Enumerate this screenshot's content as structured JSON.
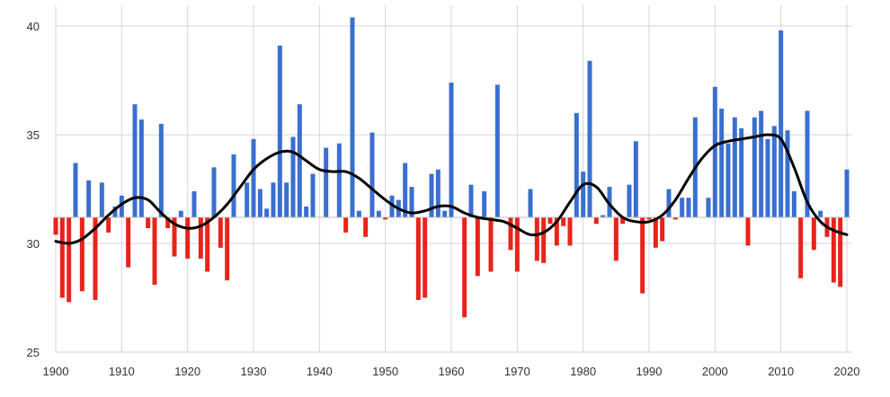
{
  "colors": {
    "above": "#3a6fcf",
    "below": "#e8231b",
    "trend": "#000000",
    "grid": "#d6d6d6"
  },
  "chart_data": {
    "type": "bar",
    "title": "",
    "xlabel": "",
    "ylabel": "",
    "baseline": 31.2,
    "xlim": [
      1900,
      2020
    ],
    "ylim": [
      25,
      41
    ],
    "xticks": [
      "1900",
      "1910",
      "1920",
      "1930",
      "1940",
      "1950",
      "1960",
      "1970",
      "1980",
      "1990",
      "2000",
      "2010",
      "2020"
    ],
    "yticks": [
      "25",
      "30",
      "35",
      "40"
    ],
    "years": [
      1900,
      1901,
      1902,
      1903,
      1904,
      1905,
      1906,
      1907,
      1908,
      1909,
      1910,
      1911,
      1912,
      1913,
      1914,
      1915,
      1916,
      1917,
      1918,
      1919,
      1920,
      1921,
      1922,
      1923,
      1924,
      1925,
      1926,
      1927,
      1928,
      1929,
      1930,
      1931,
      1932,
      1933,
      1934,
      1935,
      1936,
      1937,
      1938,
      1939,
      1940,
      1941,
      1942,
      1943,
      1944,
      1945,
      1946,
      1947,
      1948,
      1949,
      1950,
      1951,
      1952,
      1953,
      1954,
      1955,
      1956,
      1957,
      1958,
      1959,
      1960,
      1961,
      1962,
      1963,
      1964,
      1965,
      1966,
      1967,
      1968,
      1969,
      1970,
      1971,
      1972,
      1973,
      1974,
      1975,
      1976,
      1977,
      1978,
      1979,
      1980,
      1981,
      1982,
      1983,
      1984,
      1985,
      1986,
      1987,
      1988,
      1989,
      1990,
      1991,
      1992,
      1993,
      1994,
      1995,
      1996,
      1997,
      1998,
      1999,
      2000,
      2001,
      2002,
      2003,
      2004,
      2005,
      2006,
      2007,
      2008,
      2009,
      2010,
      2011,
      2012,
      2013,
      2014,
      2015,
      2016,
      2017,
      2018,
      2019,
      2020
    ],
    "values": [
      30.4,
      27.5,
      27.3,
      33.7,
      27.8,
      32.9,
      27.4,
      32.8,
      30.5,
      31.7,
      32.2,
      28.9,
      36.4,
      35.7,
      30.7,
      28.1,
      35.5,
      30.7,
      29.4,
      31.5,
      29.3,
      32.4,
      29.3,
      28.7,
      33.5,
      29.8,
      28.3,
      34.1,
      31.2,
      32.8,
      34.8,
      32.5,
      31.6,
      32.8,
      39.1,
      32.8,
      34.9,
      36.4,
      31.7,
      33.2,
      31.2,
      34.4,
      31.2,
      34.6,
      30.5,
      40.4,
      31.5,
      30.3,
      35.1,
      31.5,
      31.1,
      32.2,
      32.0,
      33.7,
      32.6,
      27.4,
      27.5,
      33.2,
      33.4,
      31.5,
      37.4,
      31.2,
      26.6,
      32.7,
      28.5,
      32.4,
      28.7,
      37.3,
      31.2,
      29.7,
      28.7,
      31.2,
      32.5,
      29.2,
      29.1,
      30.9,
      29.9,
      30.8,
      29.9,
      36.0,
      33.3,
      38.4,
      30.9,
      31.3,
      32.6,
      29.2,
      30.9,
      32.7,
      34.7,
      27.7,
      31.1,
      29.8,
      30.1,
      32.5,
      31.1,
      32.1,
      32.1,
      35.8,
      31.2,
      32.1,
      37.2,
      36.2,
      34.6,
      35.8,
      35.3,
      29.9,
      35.8,
      36.1,
      34.8,
      35.4,
      39.8,
      35.2,
      32.4,
      28.4,
      36.1,
      29.7,
      31.5,
      30.3,
      28.2,
      28.0,
      33.4
    ],
    "trend": {
      "years": [
        1900,
        1902,
        1904,
        1906,
        1908,
        1910,
        1912,
        1914,
        1916,
        1918,
        1920,
        1922,
        1924,
        1926,
        1928,
        1930,
        1932,
        1934,
        1936,
        1938,
        1940,
        1942,
        1944,
        1946,
        1948,
        1950,
        1952,
        1954,
        1956,
        1958,
        1960,
        1962,
        1964,
        1966,
        1968,
        1970,
        1972,
        1974,
        1976,
        1978,
        1980,
        1982,
        1984,
        1986,
        1988,
        1990,
        1992,
        1994,
        1996,
        1998,
        2000,
        2002,
        2004,
        2006,
        2008,
        2010,
        2012,
        2014,
        2016,
        2018,
        2020
      ],
      "values": [
        30.1,
        30.0,
        30.2,
        30.7,
        31.3,
        31.8,
        32.1,
        32.0,
        31.4,
        30.9,
        30.7,
        30.8,
        31.2,
        31.8,
        32.6,
        33.4,
        33.9,
        34.2,
        34.2,
        33.8,
        33.4,
        33.3,
        33.3,
        33.0,
        32.5,
        32.0,
        31.6,
        31.4,
        31.5,
        31.7,
        31.7,
        31.4,
        31.2,
        31.1,
        31.0,
        30.7,
        30.4,
        30.5,
        31.0,
        31.9,
        32.7,
        32.6,
        31.8,
        31.2,
        31.0,
        31.0,
        31.3,
        32.0,
        33.0,
        33.9,
        34.5,
        34.7,
        34.8,
        34.9,
        35.0,
        34.8,
        33.5,
        31.9,
        31.0,
        30.6,
        30.4
      ]
    }
  }
}
